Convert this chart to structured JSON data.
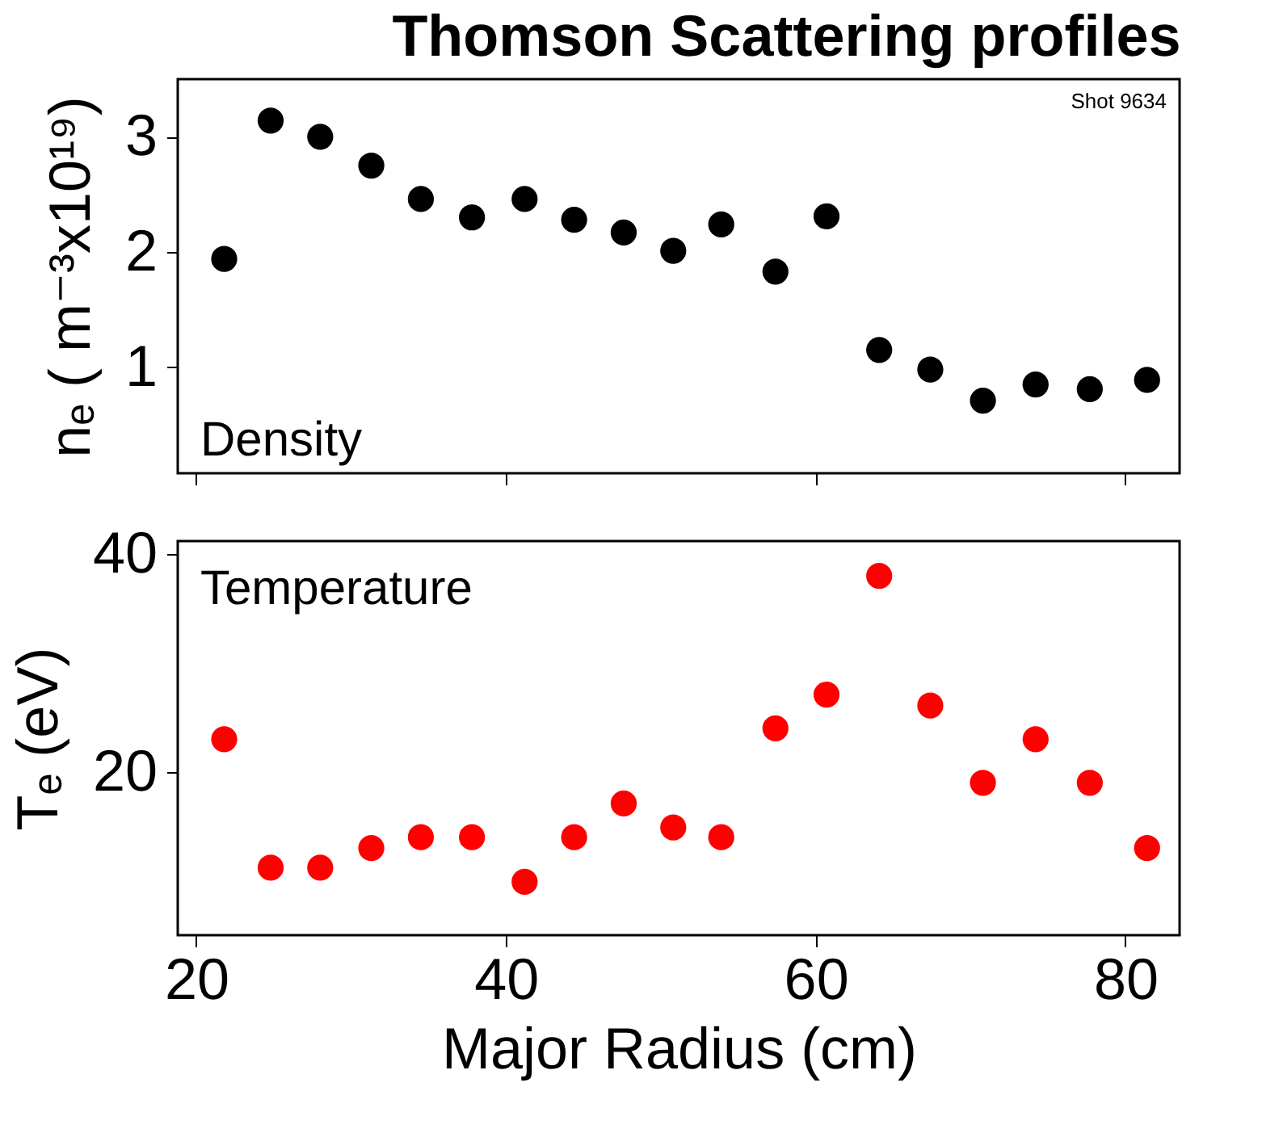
{
  "chart_data": [
    {
      "type": "scatter",
      "title": "Thomson Scattering profiles",
      "ylabel": "nₑ ( m⁻³x10¹⁹)",
      "annotations": [
        "Shot 9634",
        "Density"
      ],
      "x": [
        21.8,
        24.8,
        28.0,
        31.3,
        34.5,
        37.8,
        41.2,
        44.4,
        47.6,
        50.8,
        53.9,
        57.4,
        60.7,
        64.1,
        67.4,
        70.8,
        74.2,
        77.7,
        81.4
      ],
      "values": [
        1.94,
        3.14,
        3.0,
        2.75,
        2.46,
        2.3,
        2.46,
        2.28,
        2.17,
        2.01,
        2.24,
        1.83,
        2.31,
        1.15,
        0.98,
        0.71,
        0.85,
        0.81,
        0.89
      ],
      "color": "#000000",
      "marker": "circle",
      "xlim": [
        18.8,
        83.5
      ],
      "xticks": [
        20,
        40,
        60,
        80
      ],
      "ylim": [
        0.08,
        3.5
      ],
      "yticks": [
        1,
        2,
        3
      ],
      "tick_labels": "y"
    },
    {
      "type": "scatter",
      "xlabel": "Major Radius (cm)",
      "ylabel": "Tₑ (eV)",
      "annotations": [
        "Temperature"
      ],
      "x": [
        21.8,
        24.8,
        28.0,
        31.3,
        34.5,
        37.8,
        41.2,
        44.4,
        47.6,
        50.8,
        53.9,
        57.4,
        60.7,
        64.1,
        67.4,
        70.8,
        74.2,
        77.7,
        81.4
      ],
      "values": [
        23.0,
        11.2,
        11.2,
        13.0,
        14.0,
        14.0,
        9.9,
        14.0,
        17.1,
        14.9,
        14.0,
        24.0,
        27.1,
        38.0,
        26.1,
        19.0,
        23.0,
        19.0,
        13.0
      ],
      "color": "#ff0000",
      "marker": "circle",
      "xlim": [
        18.8,
        83.5
      ],
      "xticks": [
        20,
        40,
        60,
        80
      ],
      "ylim": [
        5,
        41.2
      ],
      "yticks": [
        20,
        40
      ]
    }
  ]
}
